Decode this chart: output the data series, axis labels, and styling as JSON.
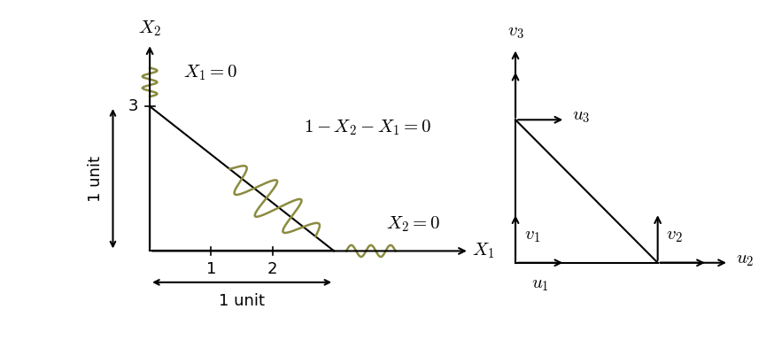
{
  "bg_color": "#ffffff",
  "olive_color": "#8B8B40",
  "black_color": "#000000",
  "label_x1_eq": "$X_1 = 0$",
  "label_diag_eq": "$1 - X_2 - X_1 = 0$",
  "label_x2_eq": "$X_2 = 0$",
  "label_x2_axis": "$X_2$",
  "label_x1_axis": "$X_1$",
  "u1_label": "$u_1$",
  "u2_label": "$u_2$",
  "u3_label": "$u_3$",
  "v1_label": "$v_1$",
  "v2_label": "$v_2$",
  "v3_label": "$v_3$",
  "fontsize_labels": 15,
  "fontsize_axis": 15,
  "fontsize_unit": 13,
  "fontsize_tick": 13
}
